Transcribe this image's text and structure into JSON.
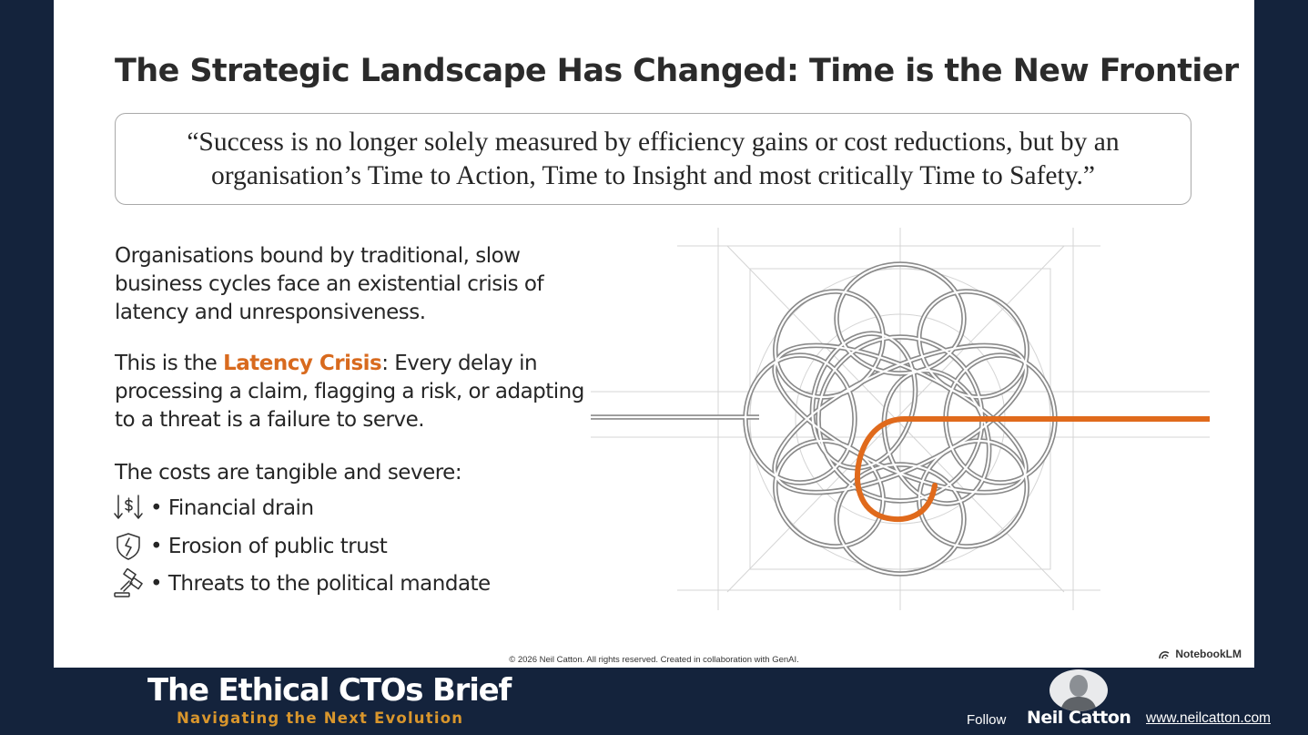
{
  "slide": {
    "title": "The Strategic Landscape Has Changed: Time is the New Frontier",
    "quote": "“Success is no longer solely measured by efficiency gains or cost reductions, but by an organisation’s Time to Action, Time to Insight and most critically Time to Safety.”",
    "paragraph1": "Organisations bound by traditional, slow business cycles face an existential crisis of latency and unresponsiveness.",
    "paragraph2_prefix": "This is the ",
    "paragraph2_highlight": "Latency Crisis",
    "paragraph2_suffix": ": Every delay in processing a claim, flagging a risk, or adapting to a threat is a failure to serve.",
    "costs_intro": "The costs are tangible and severe:",
    "costs": [
      {
        "icon": "dollar-down-arrow-icon",
        "label": "• Financial drain"
      },
      {
        "icon": "broken-shield-icon",
        "label": "• Erosion of public trust"
      },
      {
        "icon": "gavel-icon",
        "label": "• Threats to the political mandate"
      }
    ],
    "copyright": "© 2026 Neil Catton. All rights reserved. Created in collaboration with GenAI.",
    "watermark": "NotebookLM",
    "accent_color": "#d86a1e"
  },
  "footer": {
    "brand_title": "The Ethical CTOs Brief",
    "brand_subtitle": "Navigating the Next Evolution",
    "follow_label": "Follow",
    "author_name": "Neil Catton",
    "website": "www.neilcatton.com",
    "background_color": "#14233c",
    "subtitle_color": "#d9962c"
  }
}
